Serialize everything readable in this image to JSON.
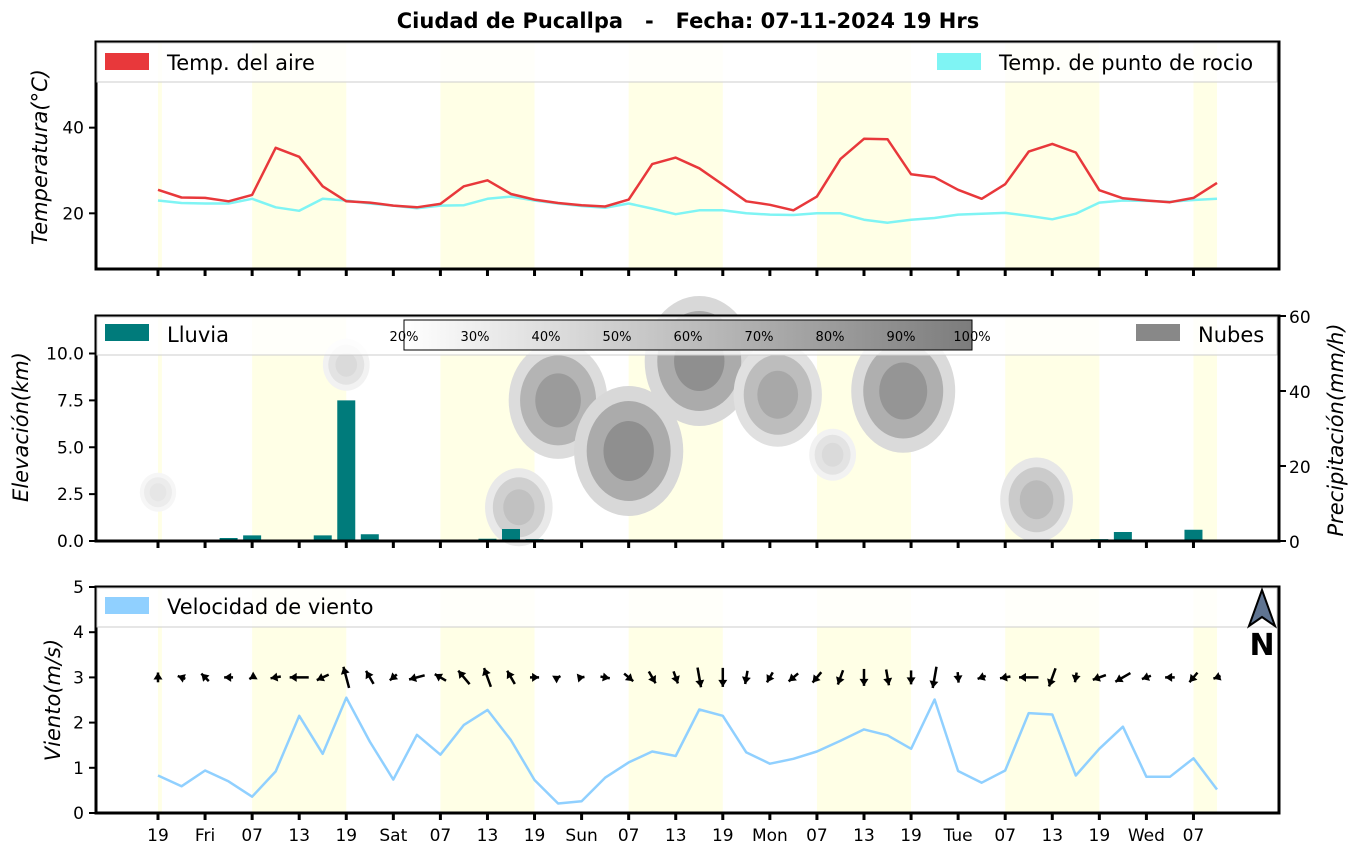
{
  "title": "Ciudad de Pucallpa   -   Fecha: 07-11-2024 19 Hrs",
  "x_tick_labels": [
    "19",
    "Fri",
    "07",
    "13",
    "19",
    "Sat",
    "07",
    "13",
    "19",
    "Sun",
    "07",
    "13",
    "19",
    "Mon",
    "07",
    "13",
    "19",
    "Tue",
    "07",
    "13",
    "19",
    "Wed",
    "07"
  ],
  "daylight_shading": "#ffffe6",
  "compass_label": "N",
  "chart_data": [
    {
      "type": "line",
      "panel": "temperature",
      "ylabel": "Temperatura(°C)",
      "ylim": [
        7,
        60
      ],
      "yticks": [
        20,
        40
      ],
      "step_hours": 3,
      "series": [
        {
          "name": "Temp. del aire",
          "color": "#e8383b",
          "values": [
            25.5,
            23.7,
            23.6,
            22.8,
            24.3,
            35.3,
            33.2,
            26.3,
            22.8,
            22.5,
            21.8,
            21.4,
            22.2,
            26.3,
            27.7,
            24.5,
            23.2,
            22.4,
            21.9,
            21.6,
            23.2,
            31.5,
            33.0,
            30.5,
            26.7,
            22.8,
            22.0,
            20.7,
            23.9,
            32.7,
            37.4,
            37.3,
            29.1,
            28.4,
            25.5,
            23.4,
            26.8,
            34.4,
            36.2,
            34.2,
            25.4,
            23.5,
            23.0,
            22.6,
            23.6,
            27.1
          ]
        },
        {
          "name": "Temp. de punto de rocio",
          "color": "#7ff4f4",
          "values": [
            23.0,
            22.4,
            22.3,
            22.3,
            23.4,
            21.4,
            20.6,
            23.4,
            23.0,
            22.3,
            21.8,
            21.2,
            21.8,
            21.9,
            23.4,
            23.9,
            23.0,
            22.3,
            21.7,
            21.3,
            22.3,
            21.1,
            19.8,
            20.7,
            20.7,
            20.0,
            19.7,
            19.6,
            20.0,
            20.0,
            18.5,
            17.8,
            18.5,
            18.9,
            19.7,
            19.9,
            20.1,
            19.4,
            18.6,
            19.9,
            22.5,
            23.0,
            22.9,
            22.7,
            23.1,
            23.4
          ]
        }
      ]
    },
    {
      "type": "bar",
      "panel": "precipitation",
      "ylabel_left": "Elevación(km)",
      "ylabel_right": "Precipitación(mm/h)",
      "ylim_left": [
        0,
        12
      ],
      "ylim_right": [
        0,
        60
      ],
      "yticks_left": [
        "0.0",
        "2.5",
        "5.0",
        "7.5",
        "10.0"
      ],
      "yticks_right": [
        "0",
        "20",
        "40",
        "60"
      ],
      "step_hours": 3,
      "series": [
        {
          "name": "Lluvia",
          "color": "#007b7b",
          "values": [
            0,
            0.3,
            0,
            0.8,
            1.5,
            0,
            0,
            1.5,
            37.5,
            1.8,
            0,
            0.4,
            0,
            0,
            0.6,
            3.2,
            0.5,
            0,
            0,
            0,
            0,
            0,
            0,
            0,
            0,
            0,
            0,
            0,
            0,
            0,
            0,
            0,
            0,
            0,
            0,
            0,
            0,
            0,
            0,
            0,
            0.5,
            2.4,
            0.3,
            0.3,
            3.0,
            0.4
          ]
        },
        {
          "name": "Nubes",
          "color": "#888888"
        }
      ],
      "cloud_colorbar": [
        "20%",
        "30%",
        "40%",
        "50%",
        "60%",
        "70%",
        "80%",
        "90%",
        "100%"
      ],
      "cloud_regions": [
        {
          "hour": 0,
          "km": 2.6,
          "cover": 0.2
        },
        {
          "hour": 24,
          "km": 9.4,
          "cover": 0.3
        },
        {
          "hour": 46,
          "km": 1.8,
          "cover": 0.5
        },
        {
          "hour": 51,
          "km": 7.5,
          "cover": 0.8
        },
        {
          "hour": 60,
          "km": 4.8,
          "cover": 0.9
        },
        {
          "hour": 69,
          "km": 9.6,
          "cover": 0.9
        },
        {
          "hour": 79,
          "km": 7.8,
          "cover": 0.7
        },
        {
          "hour": 86,
          "km": 4.6,
          "cover": 0.3
        },
        {
          "hour": 95,
          "km": 8.0,
          "cover": 0.85
        },
        {
          "hour": 112,
          "km": 2.2,
          "cover": 0.55
        },
        {
          "hour": 198,
          "km": 9.4,
          "cover": 0.15
        },
        {
          "hour": 225,
          "km": 2.8,
          "cover": 0.6
        },
        {
          "hour": 255,
          "km": 10.3,
          "cover": 0.5
        },
        {
          "hour": 264,
          "km": 2.5,
          "cover": 0.35
        }
      ]
    },
    {
      "type": "line",
      "panel": "wind",
      "ylabel": "Viento(m/s)",
      "ylim": [
        0,
        5
      ],
      "yticks": [
        0,
        1,
        2,
        3,
        4,
        5
      ],
      "step_hours": 3,
      "series": [
        {
          "name": "Velocidad de viento",
          "color": "#90d0ff",
          "values": [
            0.83,
            0.59,
            0.94,
            0.7,
            0.36,
            0.92,
            2.15,
            1.31,
            2.55,
            1.58,
            0.74,
            1.73,
            1.29,
            1.95,
            2.28,
            1.61,
            0.73,
            0.21,
            0.26,
            0.78,
            1.12,
            1.36,
            1.26,
            2.29,
            2.15,
            1.34,
            1.09,
            1.2,
            1.36,
            1.6,
            1.85,
            1.72,
            1.42,
            2.51,
            0.93,
            0.67,
            0.94,
            2.21,
            2.18,
            0.83,
            1.42,
            1.91,
            0.8,
            0.8,
            1.21,
            0.52
          ]
        }
      ],
      "wind_direction_deg": [
        0,
        290,
        315,
        270,
        240,
        260,
        270,
        245,
        345,
        330,
        230,
        255,
        300,
        320,
        340,
        330,
        90,
        60,
        80,
        100,
        130,
        150,
        160,
        170,
        180,
        190,
        210,
        230,
        220,
        200,
        180,
        170,
        180,
        190,
        175,
        250,
        260,
        270,
        200,
        190,
        250,
        240,
        250,
        270,
        220,
        250
      ]
    }
  ]
}
